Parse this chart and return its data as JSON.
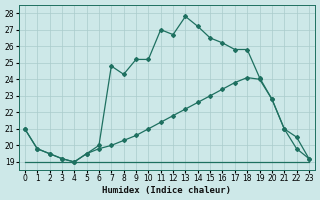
{
  "xlabel": "Humidex (Indice chaleur)",
  "bg_color": "#cde8e8",
  "grid_color": "#aacccc",
  "line_color": "#1e7060",
  "xlim": [
    -0.5,
    23.5
  ],
  "ylim": [
    18.5,
    28.5
  ],
  "xticks": [
    0,
    1,
    2,
    3,
    4,
    5,
    6,
    7,
    8,
    9,
    10,
    11,
    12,
    13,
    14,
    15,
    16,
    17,
    18,
    19,
    20,
    21,
    22,
    23
  ],
  "yticks": [
    19,
    20,
    21,
    22,
    23,
    24,
    25,
    26,
    27,
    28
  ],
  "line_flat": {
    "x": [
      0,
      23
    ],
    "y": [
      19.0,
      19.0
    ]
  },
  "line_diag": {
    "x": [
      0,
      1,
      2,
      3,
      4,
      5,
      6,
      7,
      8,
      9,
      10,
      11,
      12,
      13,
      14,
      15,
      16,
      17,
      18,
      19,
      20,
      21,
      22,
      23
    ],
    "y": [
      21.0,
      19.8,
      19.5,
      19.2,
      19.0,
      19.5,
      19.8,
      20.0,
      20.3,
      20.6,
      21.0,
      21.4,
      21.8,
      22.2,
      22.6,
      23.0,
      23.4,
      23.8,
      24.1,
      24.0,
      22.8,
      21.0,
      20.5,
      19.2
    ]
  },
  "line_main": {
    "x": [
      0,
      1,
      2,
      3,
      4,
      5,
      6,
      7,
      8,
      9,
      10,
      11,
      12,
      13,
      14,
      15,
      16,
      17,
      18,
      19,
      20,
      21,
      22,
      23
    ],
    "y": [
      21.0,
      19.8,
      19.5,
      19.2,
      19.0,
      19.5,
      20.0,
      24.8,
      24.3,
      25.2,
      25.2,
      27.0,
      26.7,
      27.8,
      27.2,
      26.5,
      26.2,
      25.8,
      25.8,
      24.1,
      22.8,
      21.0,
      19.8,
      19.2
    ]
  }
}
